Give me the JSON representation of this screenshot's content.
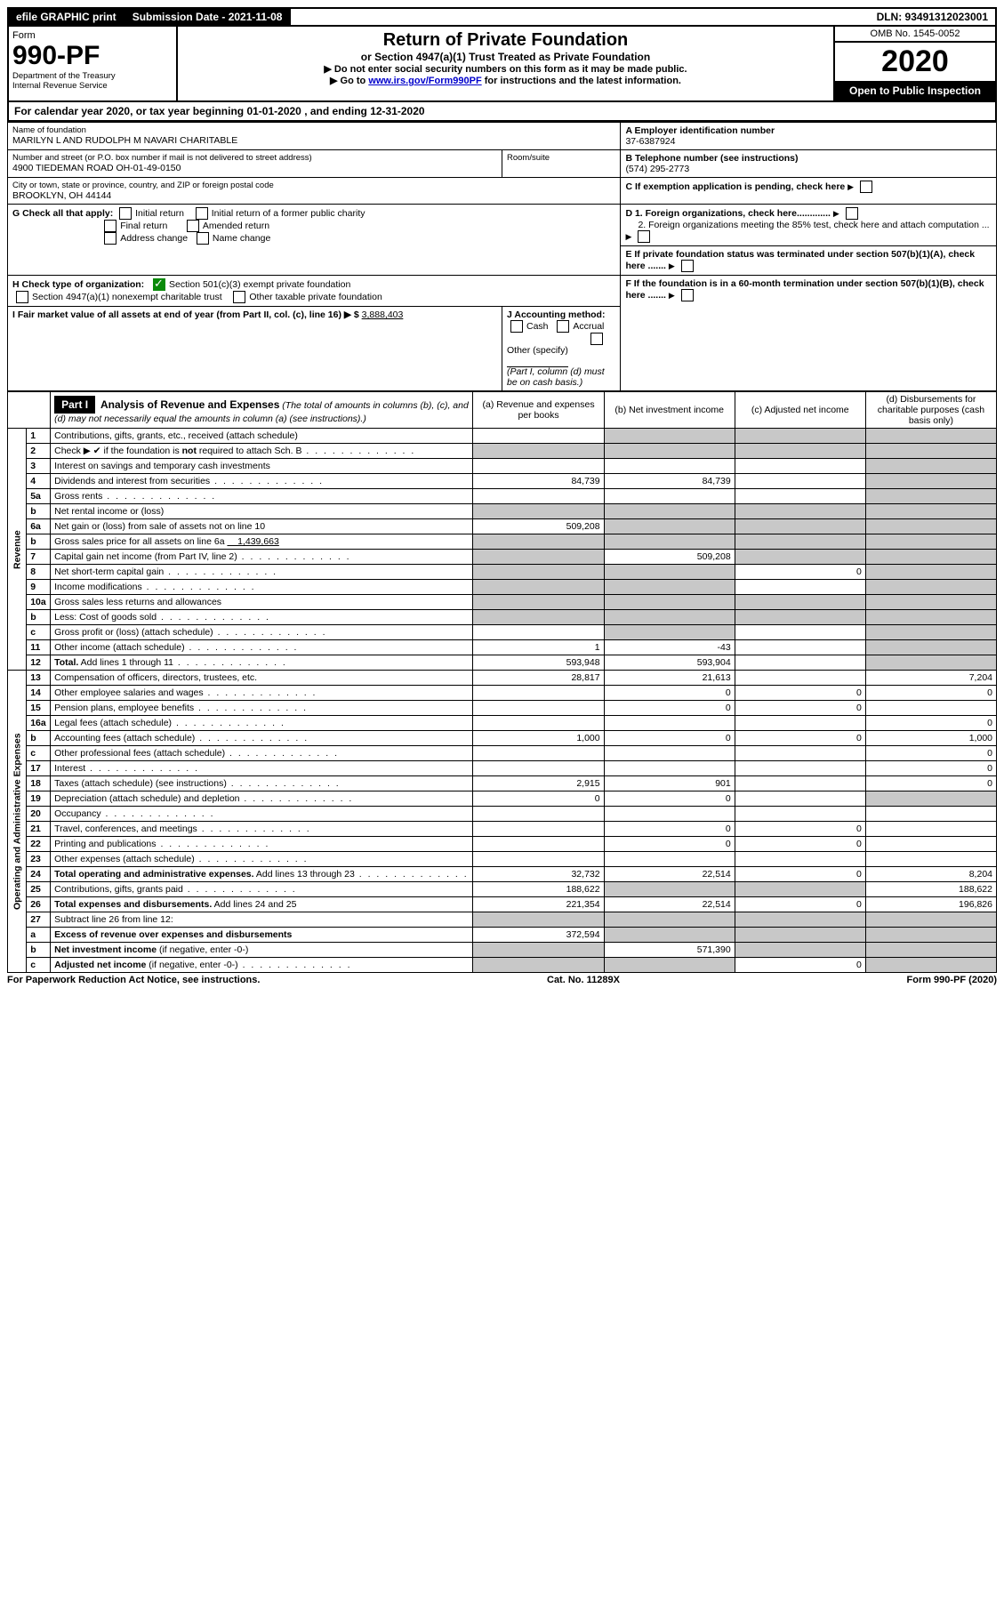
{
  "topbar": {
    "efile": "efile GRAPHIC print",
    "submission_label": "Submission Date - 2021-11-08",
    "dln": "DLN: 93491312023001"
  },
  "header": {
    "form_word": "Form",
    "form_number": "990-PF",
    "dept": "Department of the Treasury",
    "irs": "Internal Revenue Service",
    "title": "Return of Private Foundation",
    "subtitle": "or Section 4947(a)(1) Trust Treated as Private Foundation",
    "instr1": "▶ Do not enter social security numbers on this form as it may be made public.",
    "instr2_pre": "▶ Go to ",
    "instr2_link": "www.irs.gov/Form990PF",
    "instr2_post": " for instructions and the latest information.",
    "omb": "OMB No. 1545-0052",
    "year": "2020",
    "open": "Open to Public Inspection"
  },
  "cal_year": {
    "prefix": "For calendar year 2020, or tax year beginning ",
    "begin": "01-01-2020",
    "mid": " , and ending ",
    "end": "12-31-2020"
  },
  "entity": {
    "name_label": "Name of foundation",
    "name": "MARILYN L AND RUDOLPH M NAVARI CHARITABLE",
    "addr_label": "Number and street (or P.O. box number if mail is not delivered to street address)",
    "addr": "4900 TIEDEMAN ROAD OH-01-49-0150",
    "room_label": "Room/suite",
    "city_label": "City or town, state or province, country, and ZIP or foreign postal code",
    "city": "BROOKLYN, OH  44144",
    "a_label": "A Employer identification number",
    "a_value": "37-6387924",
    "b_label": "B Telephone number (see instructions)",
    "b_value": "(574) 295-2773",
    "c_label": "C If exemption application is pending, check here",
    "d1": "D 1. Foreign organizations, check here.............",
    "d2": "2. Foreign organizations meeting the 85% test, check here and attach computation ...",
    "e": "E  If private foundation status was terminated under section 507(b)(1)(A), check here .......",
    "f": "F  If the foundation is in a 60-month termination under section 507(b)(1)(B), check here .......",
    "g_label": "G Check all that apply:",
    "g_opts": [
      "Initial return",
      "Initial return of a former public charity",
      "Final return",
      "Amended return",
      "Address change",
      "Name change"
    ],
    "h_label": "H Check type of organization:",
    "h_opt1": "Section 501(c)(3) exempt private foundation",
    "h_opt2": "Section 4947(a)(1) nonexempt charitable trust",
    "h_opt3": "Other taxable private foundation",
    "i_label": "I Fair market value of all assets at end of year (from Part II, col. (c), line 16) ▶ $",
    "i_value": "3,888,403",
    "j_label": "J Accounting method:",
    "j_opts": [
      "Cash",
      "Accrual"
    ],
    "j_other": "Other (specify)",
    "j_note": "(Part I, column (d) must be on cash basis.)"
  },
  "part1": {
    "label": "Part I",
    "title": "Analysis of Revenue and Expenses",
    "title_note": " (The total of amounts in columns (b), (c), and (d) may not necessarily equal the amounts in column (a) (see instructions).)",
    "col_a": "(a)  Revenue and expenses per books",
    "col_b": "(b)  Net investment income",
    "col_c": "(c)  Adjusted net income",
    "col_d": "(d)  Disbursements for charitable purposes (cash basis only)"
  },
  "side_labels": {
    "revenue": "Revenue",
    "expenses": "Operating and Administrative Expenses"
  },
  "rows": [
    {
      "n": "1",
      "d": "Contributions, gifts, grants, etc., received (attach schedule)",
      "a": "",
      "b": "g",
      "c": "g",
      "dd": "g"
    },
    {
      "n": "2",
      "d": "Check ▶ ✔ if the foundation is <b>not</b> required to attach Sch. B",
      "dots": true,
      "a": "g",
      "b": "g",
      "c": "g",
      "dd": "g"
    },
    {
      "n": "3",
      "d": "Interest on savings and temporary cash investments",
      "a": "",
      "b": "",
      "c": "",
      "dd": "g"
    },
    {
      "n": "4",
      "d": "Dividends and interest from securities",
      "dots": true,
      "a": "84,739",
      "b": "84,739",
      "c": "",
      "dd": "g"
    },
    {
      "n": "5a",
      "d": "Gross rents",
      "dots": true,
      "a": "",
      "b": "",
      "c": "",
      "dd": "g"
    },
    {
      "n": "b",
      "d": "Net rental income or (loss)",
      "a": "g",
      "b": "g",
      "c": "g",
      "dd": "g"
    },
    {
      "n": "6a",
      "d": "Net gain or (loss) from sale of assets not on line 10",
      "a": "509,208",
      "b": "g",
      "c": "g",
      "dd": "g"
    },
    {
      "n": "b",
      "d": "Gross sales price for all assets on line 6a <u>&nbsp;&nbsp;&nbsp;&nbsp;1,439,663</u>",
      "a": "g",
      "b": "g",
      "c": "g",
      "dd": "g"
    },
    {
      "n": "7",
      "d": "Capital gain net income (from Part IV, line 2)",
      "dots": true,
      "a": "g",
      "b": "509,208",
      "c": "g",
      "dd": "g"
    },
    {
      "n": "8",
      "d": "Net short-term capital gain",
      "dots": true,
      "a": "g",
      "b": "g",
      "c": "0",
      "dd": "g"
    },
    {
      "n": "9",
      "d": "Income modifications",
      "dots": true,
      "a": "g",
      "b": "g",
      "c": "",
      "dd": "g"
    },
    {
      "n": "10a",
      "d": "Gross sales less returns and allowances",
      "a": "g",
      "b": "g",
      "c": "g",
      "dd": "g"
    },
    {
      "n": "b",
      "d": "Less: Cost of goods sold",
      "dots": true,
      "a": "g",
      "b": "g",
      "c": "g",
      "dd": "g"
    },
    {
      "n": "c",
      "d": "Gross profit or (loss) (attach schedule)",
      "dots": true,
      "a": "",
      "b": "g",
      "c": "",
      "dd": "g"
    },
    {
      "n": "11",
      "d": "Other income (attach schedule)",
      "dots": true,
      "a": "1",
      "b": "-43",
      "c": "",
      "dd": "g"
    },
    {
      "n": "12",
      "d": "<b>Total.</b> Add lines 1 through 11",
      "dots": true,
      "a": "593,948",
      "b": "593,904",
      "c": "",
      "dd": "g"
    },
    {
      "n": "13",
      "d": "Compensation of officers, directors, trustees, etc.",
      "a": "28,817",
      "b": "21,613",
      "c": "",
      "dd": "7,204"
    },
    {
      "n": "14",
      "d": "Other employee salaries and wages",
      "dots": true,
      "a": "",
      "b": "0",
      "c": "0",
      "dd": "0"
    },
    {
      "n": "15",
      "d": "Pension plans, employee benefits",
      "dots": true,
      "a": "",
      "b": "0",
      "c": "0",
      "dd": ""
    },
    {
      "n": "16a",
      "d": "Legal fees (attach schedule)",
      "dots": true,
      "a": "",
      "b": "",
      "c": "",
      "dd": "0"
    },
    {
      "n": "b",
      "d": "Accounting fees (attach schedule)",
      "dots": true,
      "a": "1,000",
      "b": "0",
      "c": "0",
      "dd": "1,000"
    },
    {
      "n": "c",
      "d": "Other professional fees (attach schedule)",
      "dots": true,
      "a": "",
      "b": "",
      "c": "",
      "dd": "0"
    },
    {
      "n": "17",
      "d": "Interest",
      "dots": true,
      "a": "",
      "b": "",
      "c": "",
      "dd": "0"
    },
    {
      "n": "18",
      "d": "Taxes (attach schedule) (see instructions)",
      "dots": true,
      "a": "2,915",
      "b": "901",
      "c": "",
      "dd": "0"
    },
    {
      "n": "19",
      "d": "Depreciation (attach schedule) and depletion",
      "dots": true,
      "a": "0",
      "b": "0",
      "c": "",
      "dd": "g"
    },
    {
      "n": "20",
      "d": "Occupancy",
      "dots": true,
      "a": "",
      "b": "",
      "c": "",
      "dd": ""
    },
    {
      "n": "21",
      "d": "Travel, conferences, and meetings",
      "dots": true,
      "a": "",
      "b": "0",
      "c": "0",
      "dd": ""
    },
    {
      "n": "22",
      "d": "Printing and publications",
      "dots": true,
      "a": "",
      "b": "0",
      "c": "0",
      "dd": ""
    },
    {
      "n": "23",
      "d": "Other expenses (attach schedule)",
      "dots": true,
      "a": "",
      "b": "",
      "c": "",
      "dd": ""
    },
    {
      "n": "24",
      "d": "<b>Total operating and administrative expenses.</b> Add lines 13 through 23",
      "dots": true,
      "a": "32,732",
      "b": "22,514",
      "c": "0",
      "dd": "8,204"
    },
    {
      "n": "25",
      "d": "Contributions, gifts, grants paid",
      "dots": true,
      "a": "188,622",
      "b": "g",
      "c": "g",
      "dd": "188,622"
    },
    {
      "n": "26",
      "d": "<b>Total expenses and disbursements.</b> Add lines 24 and 25",
      "a": "221,354",
      "b": "22,514",
      "c": "0",
      "dd": "196,826"
    },
    {
      "n": "27",
      "d": "Subtract line 26 from line 12:",
      "a": "g",
      "b": "g",
      "c": "g",
      "dd": "g"
    },
    {
      "n": "a",
      "d": "<b>Excess of revenue over expenses and disbursements</b>",
      "a": "372,594",
      "b": "g",
      "c": "g",
      "dd": "g"
    },
    {
      "n": "b",
      "d": "<b>Net investment income</b> (if negative, enter -0-)",
      "a": "g",
      "b": "571,390",
      "c": "g",
      "dd": "g"
    },
    {
      "n": "c",
      "d": "<b>Adjusted net income</b> (if negative, enter -0-)",
      "dots": true,
      "a": "g",
      "b": "g",
      "c": "0",
      "dd": "g"
    }
  ],
  "footer": {
    "left": "For Paperwork Reduction Act Notice, see instructions.",
    "mid": "Cat. No. 11289X",
    "right": "Form 990-PF (2020)"
  }
}
